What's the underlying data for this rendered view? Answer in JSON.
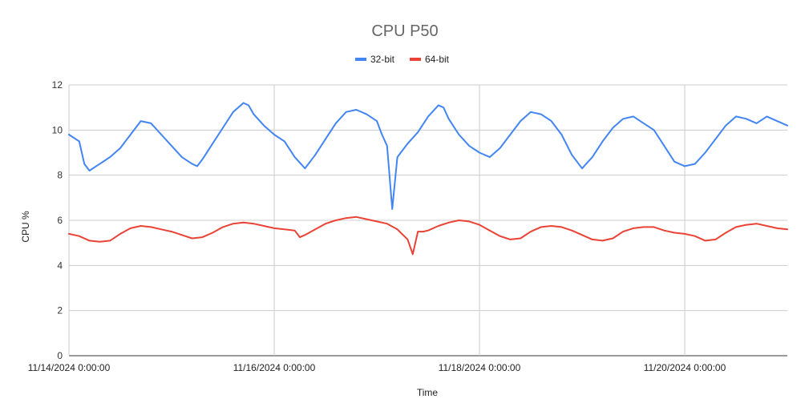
{
  "chart_data": {
    "type": "line",
    "title": "CPU P50",
    "xlabel": "Time",
    "ylabel": "CPU %",
    "ylim": [
      0,
      12
    ],
    "yticks": [
      0,
      2,
      4,
      6,
      8,
      10,
      12
    ],
    "xlim_days": [
      0,
      7
    ],
    "x_ticks": [
      {
        "day": 0,
        "label": "11/14/2024 0:00:00"
      },
      {
        "day": 2,
        "label": "11/16/2024 0:00:00"
      },
      {
        "day": 4,
        "label": "11/18/2024 0:00:00"
      },
      {
        "day": 6,
        "label": "11/20/2024 0:00:00"
      }
    ],
    "grid": true,
    "legend_position": "top-center",
    "series": [
      {
        "name": "32-bit",
        "color": "#4285f4",
        "x_days": [
          0,
          0.1,
          0.15,
          0.2,
          0.3,
          0.4,
          0.5,
          0.55,
          0.6,
          0.7,
          0.8,
          0.9,
          1.0,
          1.1,
          1.2,
          1.25,
          1.3,
          1.4,
          1.5,
          1.6,
          1.7,
          1.75,
          1.8,
          1.9,
          2.0,
          2.1,
          2.2,
          2.3,
          2.4,
          2.5,
          2.6,
          2.7,
          2.8,
          2.9,
          3.0,
          3.05,
          3.1,
          3.15,
          3.2,
          3.3,
          3.4,
          3.5,
          3.6,
          3.65,
          3.7,
          3.8,
          3.9,
          4.0,
          4.1,
          4.2,
          4.3,
          4.4,
          4.5,
          4.6,
          4.7,
          4.8,
          4.9,
          5.0,
          5.1,
          5.2,
          5.3,
          5.4,
          5.5,
          5.6,
          5.7,
          5.8,
          5.9,
          6.0,
          6.1,
          6.2,
          6.3,
          6.4,
          6.5,
          6.6,
          6.7,
          6.8,
          6.9,
          7.0
        ],
        "values": [
          9.8,
          9.5,
          8.5,
          8.2,
          8.5,
          8.8,
          9.2,
          9.5,
          9.8,
          10.4,
          10.3,
          9.8,
          9.3,
          8.8,
          8.5,
          8.4,
          8.7,
          9.4,
          10.1,
          10.8,
          11.2,
          11.1,
          10.7,
          10.2,
          9.8,
          9.5,
          8.8,
          8.3,
          8.9,
          9.6,
          10.3,
          10.8,
          10.9,
          10.7,
          10.4,
          9.8,
          9.3,
          6.5,
          8.8,
          9.4,
          9.9,
          10.6,
          11.1,
          11.0,
          10.5,
          9.8,
          9.3,
          9.0,
          8.8,
          9.2,
          9.8,
          10.4,
          10.8,
          10.7,
          10.4,
          9.8,
          8.9,
          8.3,
          8.8,
          9.5,
          10.1,
          10.5,
          10.6,
          10.3,
          10.0,
          9.3,
          8.6,
          8.4,
          8.5,
          9.0,
          9.6,
          10.2,
          10.6,
          10.5,
          10.3,
          10.6,
          10.4,
          10.2
        ]
      },
      {
        "name": "64-bit",
        "color": "#ea4335",
        "x_days": [
          0,
          0.1,
          0.2,
          0.3,
          0.4,
          0.5,
          0.6,
          0.7,
          0.8,
          0.9,
          1.0,
          1.1,
          1.2,
          1.3,
          1.4,
          1.5,
          1.6,
          1.7,
          1.8,
          1.9,
          2.0,
          2.1,
          2.2,
          2.25,
          2.3,
          2.4,
          2.5,
          2.6,
          2.7,
          2.8,
          2.9,
          3.0,
          3.1,
          3.2,
          3.3,
          3.35,
          3.4,
          3.45,
          3.5,
          3.6,
          3.7,
          3.8,
          3.9,
          4.0,
          4.1,
          4.2,
          4.3,
          4.4,
          4.5,
          4.6,
          4.7,
          4.8,
          4.9,
          5.0,
          5.1,
          5.2,
          5.3,
          5.4,
          5.5,
          5.6,
          5.7,
          5.8,
          5.9,
          6.0,
          6.1,
          6.2,
          6.3,
          6.4,
          6.5,
          6.6,
          6.7,
          6.8,
          6.9,
          7.0
        ],
        "values": [
          5.4,
          5.3,
          5.1,
          5.05,
          5.1,
          5.4,
          5.65,
          5.75,
          5.7,
          5.6,
          5.5,
          5.35,
          5.2,
          5.25,
          5.45,
          5.7,
          5.85,
          5.9,
          5.85,
          5.75,
          5.65,
          5.6,
          5.55,
          5.25,
          5.35,
          5.6,
          5.85,
          6.0,
          6.1,
          6.15,
          6.05,
          5.95,
          5.85,
          5.6,
          5.15,
          4.5,
          5.5,
          5.5,
          5.55,
          5.75,
          5.9,
          6.0,
          5.95,
          5.8,
          5.55,
          5.3,
          5.15,
          5.2,
          5.5,
          5.7,
          5.75,
          5.7,
          5.55,
          5.35,
          5.15,
          5.1,
          5.2,
          5.5,
          5.65,
          5.7,
          5.7,
          5.55,
          5.45,
          5.4,
          5.3,
          5.1,
          5.15,
          5.45,
          5.7,
          5.8,
          5.85,
          5.75,
          5.65,
          5.6
        ]
      }
    ]
  }
}
